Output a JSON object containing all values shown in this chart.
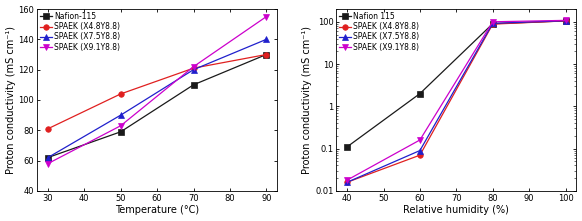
{
  "left": {
    "xlabel": "Temperature (°C)",
    "ylabel": "Proton conductivity (mS cm⁻¹)",
    "xlim": [
      27,
      93
    ],
    "ylim": [
      40,
      160
    ],
    "xticks": [
      30,
      40,
      50,
      60,
      70,
      80,
      90
    ],
    "yticks": [
      40,
      60,
      80,
      100,
      120,
      140,
      160
    ],
    "series": [
      {
        "label": "Nafion-115",
        "x": [
          30,
          50,
          70,
          90
        ],
        "y": [
          62,
          79,
          110,
          130
        ],
        "color": "#1a1a1a",
        "marker": "s",
        "markersize": 4,
        "linestyle": "-"
      },
      {
        "label": "SPAEK (X4.8Y8.8)",
        "x": [
          30,
          50,
          70,
          90
        ],
        "y": [
          81,
          104,
          121,
          130
        ],
        "color": "#e02020",
        "marker": "o",
        "markersize": 4,
        "linestyle": "-"
      },
      {
        "label": "SPAEK (X7.5Y8.8)",
        "x": [
          30,
          50,
          70,
          90
        ],
        "y": [
          62,
          90,
          120,
          140
        ],
        "color": "#2020cc",
        "marker": "^",
        "markersize": 4,
        "linestyle": "-"
      },
      {
        "label": "SPAEK (X9.1Y8.8)",
        "x": [
          30,
          50,
          70,
          90
        ],
        "y": [
          58,
          83,
          122,
          155
        ],
        "color": "#cc00cc",
        "marker": "v",
        "markersize": 4,
        "linestyle": "-"
      }
    ]
  },
  "right": {
    "xlabel": "Relative humidity (%)",
    "ylabel": "Proton conductivity (mS cm⁻¹)",
    "xlim": [
      37,
      103
    ],
    "ylim_log": [
      0.01,
      200
    ],
    "xticks": [
      40,
      50,
      60,
      70,
      80,
      90,
      100
    ],
    "series": [
      {
        "label": "Nafion 115",
        "x": [
          40,
          60,
          80,
          100
        ],
        "y": [
          0.11,
          2.0,
          90,
          105
        ],
        "color": "#1a1a1a",
        "marker": "s",
        "markersize": 4,
        "linestyle": "-"
      },
      {
        "label": "SPAEK (X4.8Y8.8)",
        "x": [
          40,
          60,
          80,
          100
        ],
        "y": [
          0.016,
          0.07,
          88,
          105
        ],
        "color": "#e02020",
        "marker": "o",
        "markersize": 4,
        "linestyle": "-"
      },
      {
        "label": "SPAEK (X7.5Y8.8)",
        "x": [
          40,
          60,
          80,
          100
        ],
        "y": [
          0.016,
          0.09,
          92,
          106
        ],
        "color": "#2020cc",
        "marker": "^",
        "markersize": 4,
        "linestyle": "-"
      },
      {
        "label": "SPAEK (X9.1Y8.8)",
        "x": [
          40,
          60,
          80,
          100
        ],
        "y": [
          0.018,
          0.16,
          100,
          108
        ],
        "color": "#cc00cc",
        "marker": "v",
        "markersize": 4,
        "linestyle": "-"
      }
    ]
  },
  "legend_fontsize": 5.5,
  "tick_fontsize": 6,
  "label_fontsize": 7
}
